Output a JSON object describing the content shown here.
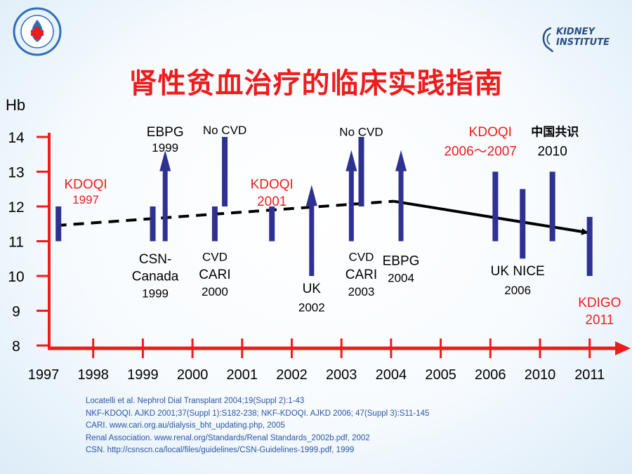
{
  "title": "肾性贫血治疗的临床实践指南",
  "logo_right": {
    "line1": "KIDNEY",
    "line2": "INSTITUTE"
  },
  "references": [
    "Locatelli et al. Nephrol Dial Transplant 2004;19(Suppl 2):1-43",
    "NKF-KDOQI. AJKD 2001;37(Suppl 1):S182-238; NKF-KDOQI. AJKD 2006; 47(Suppl 3):S11-145",
    "CARI. www.cari.org.au/dialysis_bht_updating.php, 2005",
    "Renal Association. www.renal.org/Standards/Renal Standards_2002b.pdf, 2002",
    "CSN. http://csnscn.ca/local/files/guidelines/CSN-Guidelines-1999.pdf, 1999"
  ],
  "colors": {
    "title": "#ee1c1c",
    "axis": "#ee1c1c",
    "bar": "#2e3192",
    "red_label": "#ee1c1c",
    "reference": "#2a55a8"
  },
  "chart_data": {
    "type": "timeline",
    "ylabel": "Hb",
    "ylim": [
      8,
      14
    ],
    "yticks": [
      "8",
      "9",
      "10",
      "11",
      "12",
      "13",
      "14"
    ],
    "xticks": [
      "1997",
      "1998",
      "1999",
      "2000",
      "2001",
      "2002",
      "2003",
      "2004",
      "2005",
      "2006",
      "2010",
      "2011"
    ],
    "series": [
      {
        "pos": 0.3,
        "low": 11,
        "high": 12,
        "arrow": false
      },
      {
        "pos": 2.2,
        "low": 11,
        "high": 12,
        "arrow": false
      },
      {
        "pos": 2.45,
        "low": 11,
        "high": 13.5,
        "arrow": true
      },
      {
        "pos": 3.45,
        "low": 11,
        "high": 12,
        "arrow": false
      },
      {
        "pos": 3.65,
        "low": 12,
        "high": 14,
        "arrow": false
      },
      {
        "pos": 4.6,
        "low": 11,
        "high": 12,
        "arrow": false
      },
      {
        "pos": 5.4,
        "low": 10,
        "high": 12.5,
        "arrow": true
      },
      {
        "pos": 6.2,
        "low": 11,
        "high": 13.5,
        "arrow": true
      },
      {
        "pos": 6.4,
        "low": 12,
        "high": 14,
        "arrow": false
      },
      {
        "pos": 7.2,
        "low": 11,
        "high": 13.5,
        "arrow": true
      },
      {
        "pos": 9.1,
        "low": 11,
        "high": 13,
        "arrow": false
      },
      {
        "pos": 9.65,
        "low": 10.5,
        "high": 12.5,
        "arrow": false
      },
      {
        "pos": 10.25,
        "low": 11,
        "high": 13,
        "arrow": false
      },
      {
        "pos": 11.0,
        "low": 10,
        "high": 11.7,
        "arrow": false
      }
    ],
    "trend_dashed": [
      [
        0.25,
        11.45
      ],
      [
        7.05,
        12.15
      ]
    ],
    "trend_solid": [
      [
        7.05,
        12.15
      ],
      [
        10.95,
        11.25
      ]
    ],
    "labels": [
      {
        "text": "KDOQI",
        "pos": 0.85,
        "hb": 12.65,
        "color": "red",
        "size": 19
      },
      {
        "text": "1997",
        "pos": 0.85,
        "hb": 12.2,
        "color": "red",
        "size": 17
      },
      {
        "text": "EBPG",
        "pos": 2.45,
        "hb": 14.15,
        "color": "black",
        "size": 19
      },
      {
        "text": "1999",
        "pos": 2.45,
        "hb": 13.7,
        "color": "black",
        "size": 17
      },
      {
        "text": "No CVD",
        "pos": 3.65,
        "hb": 14.2,
        "color": "black",
        "size": 17
      },
      {
        "text": "KDOQI",
        "pos": 4.6,
        "hb": 12.65,
        "color": "red",
        "size": 19
      },
      {
        "text": "2001",
        "pos": 4.6,
        "hb": 12.15,
        "color": "red",
        "size": 19
      },
      {
        "text": "No CVD",
        "pos": 6.4,
        "hb": 14.15,
        "color": "black",
        "size": 17
      },
      {
        "text": "KDOQI",
        "pos": 9.0,
        "hb": 14.15,
        "color": "red",
        "size": 19
      },
      {
        "text": "2006～2007",
        "pos": 8.8,
        "hb": 13.6,
        "color": "red",
        "size": 19
      },
      {
        "text": "中国共识",
        "pos": 10.3,
        "hb": 14.15,
        "color": "black",
        "size": 17
      },
      {
        "text": "2010",
        "pos": 10.25,
        "hb": 13.6,
        "color": "black",
        "size": 19
      },
      {
        "text": "CSN-",
        "pos": 2.25,
        "hb": 10.5,
        "color": "black",
        "size": 19
      },
      {
        "text": "Canada",
        "pos": 2.25,
        "hb": 10.0,
        "color": "black",
        "size": 19
      },
      {
        "text": "1999",
        "pos": 2.25,
        "hb": 9.5,
        "color": "black",
        "size": 17
      },
      {
        "text": "CVD",
        "pos": 3.45,
        "hb": 10.55,
        "color": "black",
        "size": 17
      },
      {
        "text": "CARI",
        "pos": 3.45,
        "hb": 10.05,
        "color": "black",
        "size": 19
      },
      {
        "text": "2000",
        "pos": 3.45,
        "hb": 9.55,
        "color": "black",
        "size": 17
      },
      {
        "text": "UK",
        "pos": 5.4,
        "hb": 9.65,
        "color": "black",
        "size": 19
      },
      {
        "text": "2002",
        "pos": 5.4,
        "hb": 9.1,
        "color": "black",
        "size": 17
      },
      {
        "text": "CVD",
        "pos": 6.4,
        "hb": 10.55,
        "color": "black",
        "size": 17
      },
      {
        "text": "CARI",
        "pos": 6.4,
        "hb": 10.05,
        "color": "black",
        "size": 19
      },
      {
        "text": "2003",
        "pos": 6.4,
        "hb": 9.55,
        "color": "black",
        "size": 17
      },
      {
        "text": "EBPG",
        "pos": 7.2,
        "hb": 10.45,
        "color": "black",
        "size": 19
      },
      {
        "text": "2004",
        "pos": 7.2,
        "hb": 9.95,
        "color": "black",
        "size": 17
      },
      {
        "text": "UK NICE",
        "pos": 9.55,
        "hb": 10.15,
        "color": "black",
        "size": 19
      },
      {
        "text": "2006",
        "pos": 9.55,
        "hb": 9.6,
        "color": "black",
        "size": 17
      },
      {
        "text": "KDIGO",
        "pos": 11.2,
        "hb": 9.25,
        "color": "red",
        "size": 19
      },
      {
        "text": "2011",
        "pos": 11.2,
        "hb": 8.75,
        "color": "red",
        "size": 19
      }
    ]
  }
}
